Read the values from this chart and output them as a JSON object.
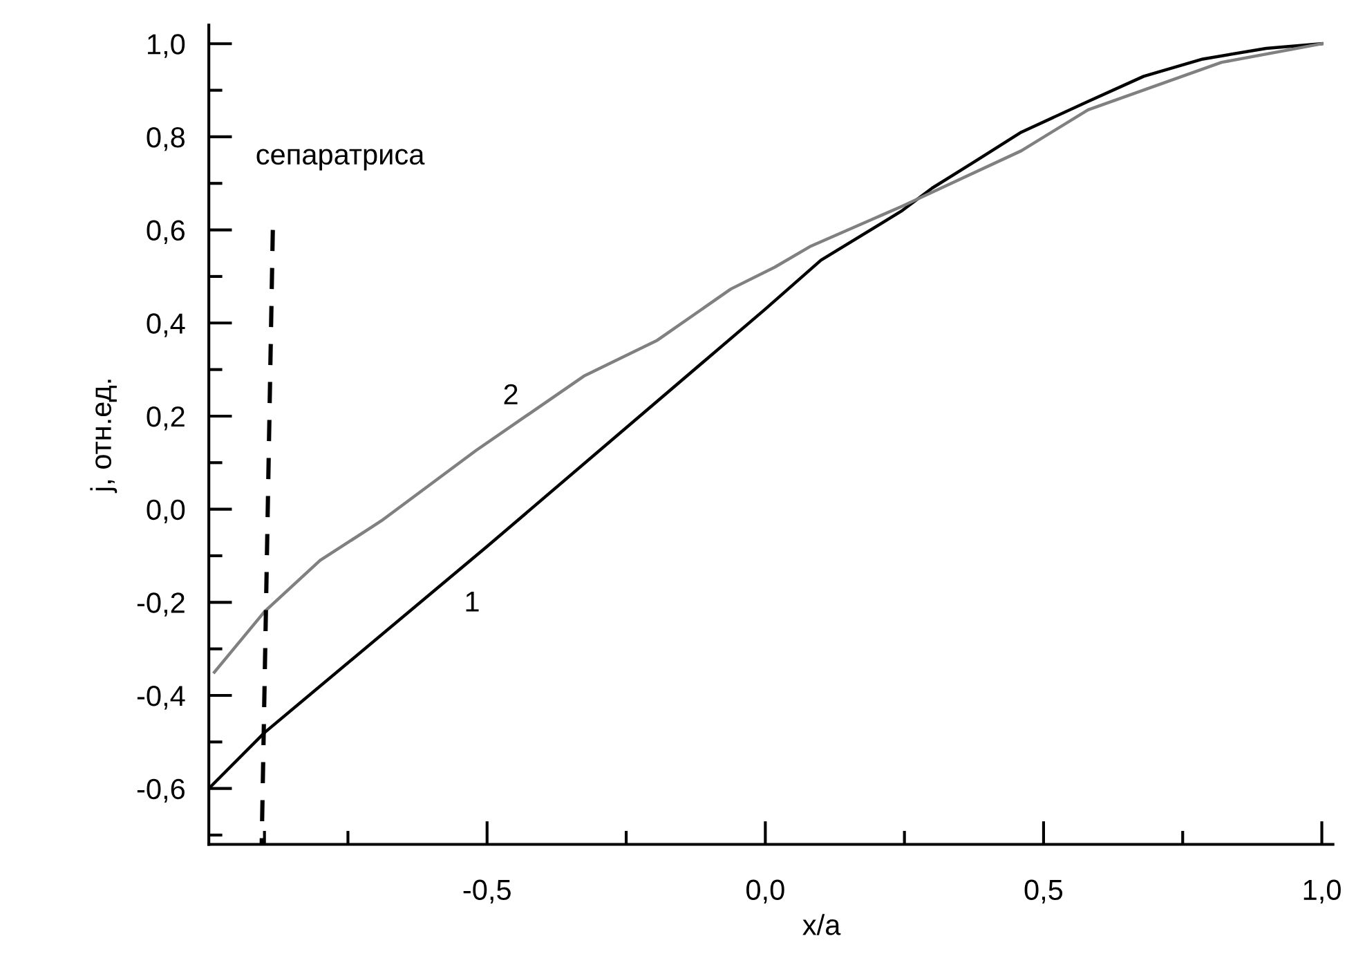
{
  "chart_data": {
    "type": "line",
    "xlabel": "x/a",
    "ylabel": "j, отн.ед.",
    "xlim": [
      -1.0,
      1.02
    ],
    "ylim": [
      -0.72,
      1.04
    ],
    "xticks": [
      {
        "value": -0.9,
        "label": null
      },
      {
        "value": -0.75,
        "label": null
      },
      {
        "value": -0.5,
        "label": "-0,5"
      },
      {
        "value": -0.25,
        "label": null
      },
      {
        "value": 0.0,
        "label": "0,0"
      },
      {
        "value": 0.25,
        "label": null
      },
      {
        "value": 0.5,
        "label": "0,5"
      },
      {
        "value": 0.75,
        "label": null
      },
      {
        "value": 1.0,
        "label": "1,0"
      }
    ],
    "yticks": [
      {
        "value": -0.7,
        "label": null
      },
      {
        "value": -0.6,
        "label": "-0,6"
      },
      {
        "value": -0.5,
        "label": null
      },
      {
        "value": -0.4,
        "label": "-0,4"
      },
      {
        "value": -0.3,
        "label": null
      },
      {
        "value": -0.2,
        "label": "-0,2"
      },
      {
        "value": -0.1,
        "label": null
      },
      {
        "value": 0.0,
        "label": "0,0"
      },
      {
        "value": 0.1,
        "label": null
      },
      {
        "value": 0.2,
        "label": "0,2"
      },
      {
        "value": 0.3,
        "label": null
      },
      {
        "value": 0.4,
        "label": "0,4"
      },
      {
        "value": 0.5,
        "label": null
      },
      {
        "value": 0.6,
        "label": "0,6"
      },
      {
        "value": 0.7,
        "label": null
      },
      {
        "value": 0.8,
        "label": "0,8"
      },
      {
        "value": 0.9,
        "label": null
      },
      {
        "value": 1.0,
        "label": "1,0"
      }
    ],
    "grid": false,
    "marker": "none",
    "series": [
      {
        "name": "1",
        "color": "#000000",
        "line_style": "solid",
        "x": [
          -1.0,
          -0.9,
          -0.5,
          0.0,
          0.1,
          0.244,
          0.3,
          0.378,
          0.46,
          0.58,
          0.68,
          0.786,
          0.9,
          1.0
        ],
        "values": [
          -0.6,
          -0.48,
          -0.08,
          0.43,
          0.535,
          0.64,
          0.69,
          0.748,
          0.81,
          0.876,
          0.93,
          0.967,
          0.99,
          1.0
        ]
      },
      {
        "name": "2",
        "color": "#808080",
        "line_style": "solid",
        "x": [
          -0.99,
          -0.9,
          -0.8,
          -0.69,
          -0.52,
          -0.326,
          -0.194,
          -0.062,
          0.017,
          0.08,
          0.244,
          0.46,
          0.58,
          0.82,
          1.0
        ],
        "values": [
          -0.35,
          -0.22,
          -0.11,
          -0.025,
          0.126,
          0.286,
          0.363,
          0.473,
          0.52,
          0.564,
          0.65,
          0.77,
          0.858,
          0.96,
          1.0
        ]
      },
      {
        "name": "сепаратриса",
        "color": "#000000",
        "line_style": "dashed",
        "x": [
          -0.885,
          -0.905
        ],
        "values": [
          0.6,
          -0.72
        ]
      }
    ]
  }
}
